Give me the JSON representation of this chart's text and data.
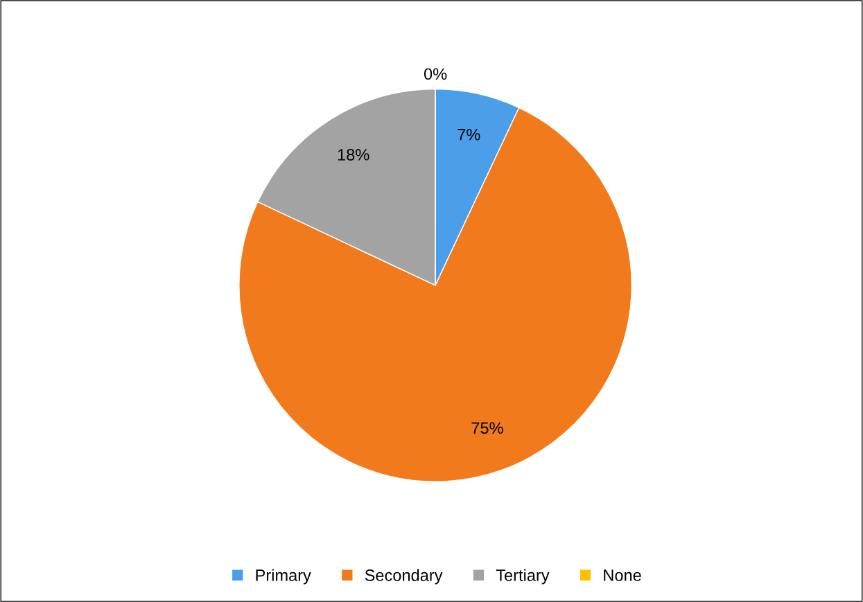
{
  "chart_data": {
    "type": "pie",
    "categories": [
      "Primary",
      "Secondary",
      "Tertiary",
      "None"
    ],
    "values": [
      7,
      75,
      18,
      0
    ],
    "colors": [
      "#4a9fe8",
      "#f07a1c",
      "#a3a3a3",
      "#ffc000"
    ],
    "value_labels": [
      "7%",
      "75%",
      "18%",
      "0%"
    ],
    "legend": "bottom"
  }
}
